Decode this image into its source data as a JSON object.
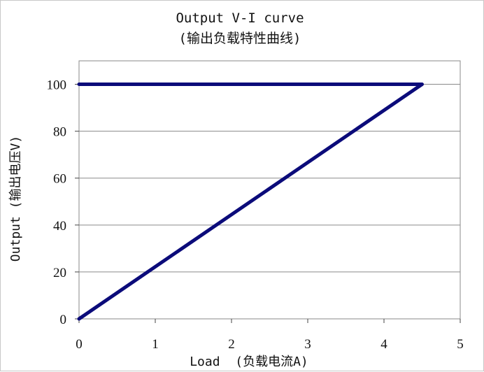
{
  "chart_data": {
    "type": "line",
    "title": "Output V-I curve",
    "subtitle": "(输出负载特性曲线)",
    "xlabel": "Load  (负载电流A)",
    "ylabel": "Output (输出电压V)",
    "xlim": [
      0,
      5
    ],
    "ylim": [
      0,
      110
    ],
    "x_ticks": [
      0,
      1,
      2,
      3,
      4,
      5
    ],
    "y_ticks": [
      0,
      20,
      40,
      60,
      80,
      100
    ],
    "grid": true,
    "legend": "none",
    "series": [
      {
        "color": "#0b0b7a",
        "points": [
          [
            0,
            0
          ],
          [
            4.5,
            100
          ],
          [
            0,
            100
          ]
        ]
      }
    ]
  }
}
